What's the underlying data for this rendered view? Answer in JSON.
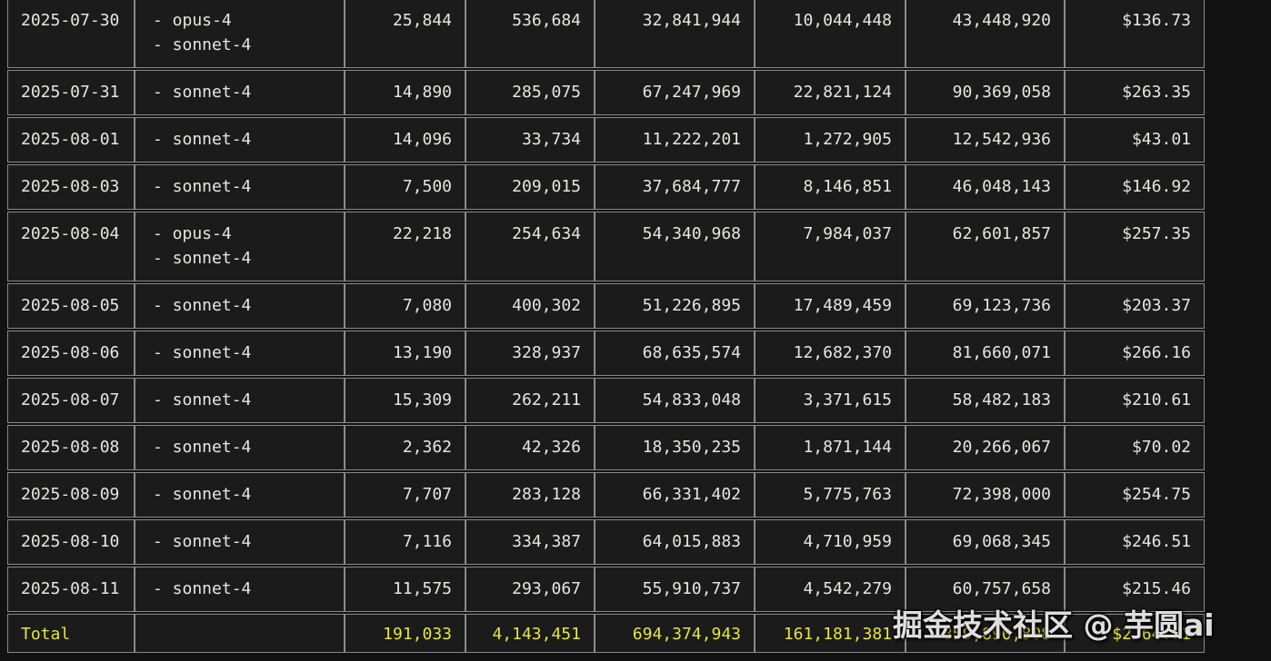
{
  "colors": {
    "background": "#121212",
    "cell_background": "#1b1b1b",
    "border": "#8a8a8a",
    "text": "#e8e6e2",
    "total_text": "#e6e63a"
  },
  "table": {
    "rows": [
      {
        "date": "2025-07-30",
        "models": [
          "- opus-4",
          "- sonnet-4"
        ],
        "values": [
          "25,844",
          "536,684",
          "32,841,944",
          "10,044,448",
          "43,448,920",
          "$136.73"
        ]
      },
      {
        "date": "2025-07-31",
        "models": [
          "- sonnet-4"
        ],
        "values": [
          "14,890",
          "285,075",
          "67,247,969",
          "22,821,124",
          "90,369,058",
          "$263.35"
        ]
      },
      {
        "date": "2025-08-01",
        "models": [
          "- sonnet-4"
        ],
        "values": [
          "14,096",
          "33,734",
          "11,222,201",
          "1,272,905",
          "12,542,936",
          "$43.01"
        ]
      },
      {
        "date": "2025-08-03",
        "models": [
          "- sonnet-4"
        ],
        "values": [
          "7,500",
          "209,015",
          "37,684,777",
          "8,146,851",
          "46,048,143",
          "$146.92"
        ]
      },
      {
        "date": "2025-08-04",
        "models": [
          "- opus-4",
          "- sonnet-4"
        ],
        "values": [
          "22,218",
          "254,634",
          "54,340,968",
          "7,984,037",
          "62,601,857",
          "$257.35"
        ]
      },
      {
        "date": "2025-08-05",
        "models": [
          "- sonnet-4"
        ],
        "values": [
          "7,080",
          "400,302",
          "51,226,895",
          "17,489,459",
          "69,123,736",
          "$203.37"
        ]
      },
      {
        "date": "2025-08-06",
        "models": [
          "- sonnet-4"
        ],
        "values": [
          "13,190",
          "328,937",
          "68,635,574",
          "12,682,370",
          "81,660,071",
          "$266.16"
        ]
      },
      {
        "date": "2025-08-07",
        "models": [
          "- sonnet-4"
        ],
        "values": [
          "15,309",
          "262,211",
          "54,833,048",
          "3,371,615",
          "58,482,183",
          "$210.61"
        ]
      },
      {
        "date": "2025-08-08",
        "models": [
          "- sonnet-4"
        ],
        "values": [
          "2,362",
          "42,326",
          "18,350,235",
          "1,871,144",
          "20,266,067",
          "$70.02"
        ]
      },
      {
        "date": "2025-08-09",
        "models": [
          "- sonnet-4"
        ],
        "values": [
          "7,707",
          "283,128",
          "66,331,402",
          "5,775,763",
          "72,398,000",
          "$254.75"
        ]
      },
      {
        "date": "2025-08-10",
        "models": [
          "- sonnet-4"
        ],
        "values": [
          "7,116",
          "334,387",
          "64,015,883",
          "4,710,959",
          "69,068,345",
          "$246.51"
        ]
      },
      {
        "date": "2025-08-11",
        "models": [
          "- sonnet-4"
        ],
        "values": [
          "11,575",
          "293,067",
          "55,910,737",
          "4,542,279",
          "60,757,658",
          "$215.46"
        ]
      }
    ],
    "total_row": {
      "label": "Total",
      "values": [
        "191,033",
        "4,143,451",
        "694,374,943",
        "161,181,381",
        "859,890,808",
        "$2764.71"
      ]
    }
  },
  "watermark": {
    "text": "掘金技术社区 @ 芋圆ai"
  }
}
